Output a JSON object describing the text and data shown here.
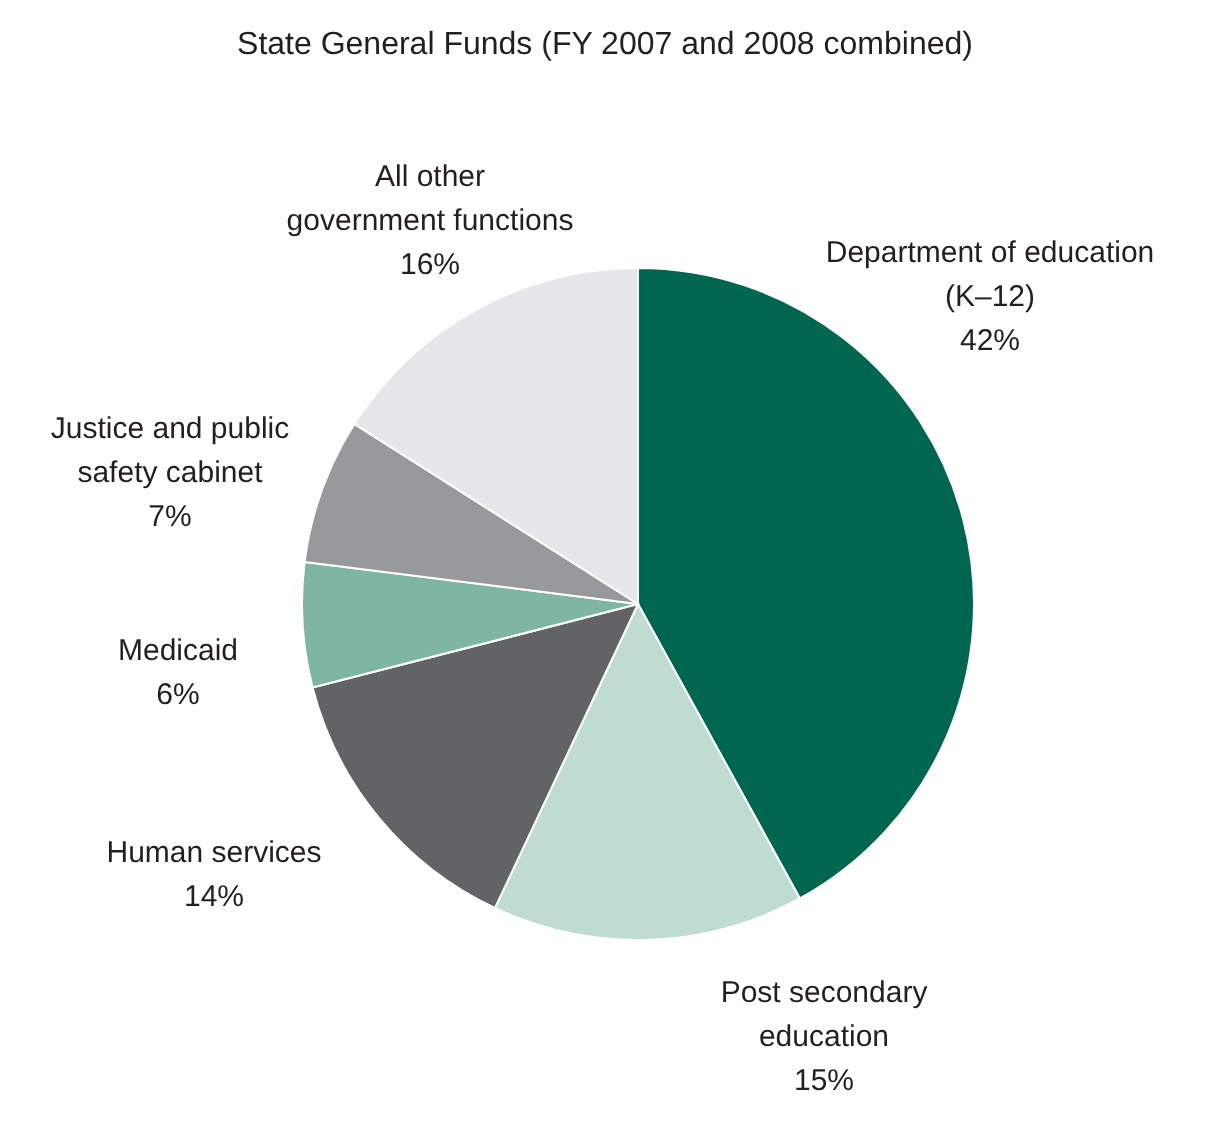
{
  "chart_data": {
    "type": "pie",
    "title": "State General Funds (FY 2007 and 2008 combined)",
    "categories": [
      "Department of education\n(K–12)",
      "Post secondary\neducation",
      "Human services",
      "Medicaid",
      "Justice and public\nsafety cabinet",
      "All other\ngovernment functions"
    ],
    "values": [
      42,
      15,
      14,
      6,
      7,
      16
    ],
    "colors": [
      "#00664f",
      "#bfdcd3",
      "#616365",
      "#7fb5a3",
      "#97999b",
      "#e6e7e8"
    ],
    "value_labels": [
      "42%",
      "15%",
      "14%",
      "6%",
      "7%",
      "16%"
    ],
    "legend": false
  }
}
